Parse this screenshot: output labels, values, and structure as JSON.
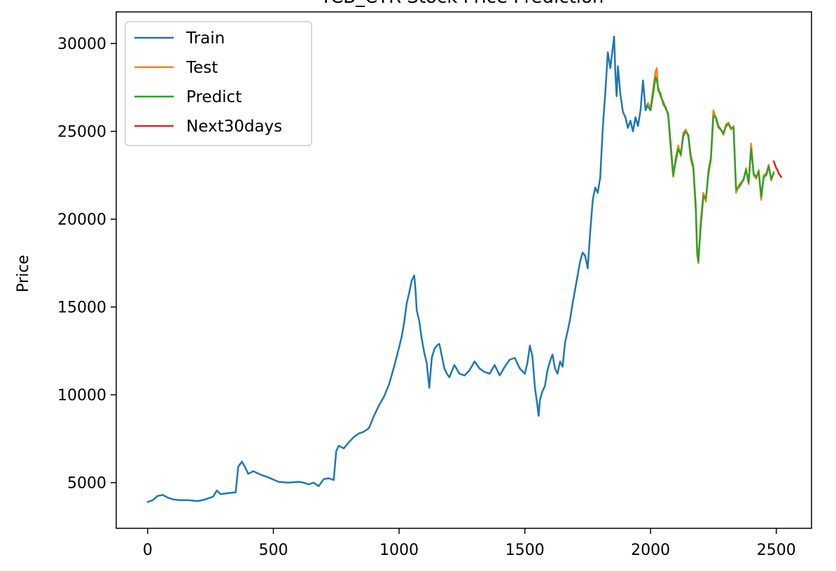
{
  "chart_data": {
    "type": "line",
    "title": "TCB_CTR Stock Price Prediction",
    "xlabel": "",
    "ylabel": "Price",
    "xlim": [
      -125,
      2640
    ],
    "ylim": [
      2400,
      31800
    ],
    "x_ticks": [
      0,
      500,
      1000,
      1500,
      2000,
      2500
    ],
    "y_ticks": [
      5000,
      10000,
      15000,
      20000,
      25000,
      30000
    ],
    "x_tick_labels": [
      "0",
      "500",
      "1000",
      "1500",
      "2000",
      "2500"
    ],
    "y_tick_labels": [
      "5000",
      "10000",
      "15000",
      "20000",
      "25000",
      "30000"
    ],
    "grid": false,
    "legend_position": "upper-left",
    "series": [
      {
        "name": "Train",
        "color": "#1f77b4",
        "x": [
          0,
          20,
          40,
          60,
          80,
          100,
          130,
          160,
          200,
          230,
          260,
          275,
          290,
          320,
          350,
          360,
          375,
          390,
          400,
          420,
          450,
          480,
          520,
          560,
          600,
          620,
          640,
          660,
          680,
          700,
          720,
          740,
          750,
          760,
          780,
          800,
          820,
          840,
          860,
          880,
          900,
          920,
          940,
          960,
          980,
          1000,
          1010,
          1020,
          1030,
          1040,
          1050,
          1060,
          1065,
          1070,
          1080,
          1090,
          1100,
          1110,
          1120,
          1130,
          1140,
          1150,
          1160,
          1170,
          1180,
          1190,
          1200,
          1220,
          1240,
          1260,
          1280,
          1300,
          1320,
          1340,
          1360,
          1380,
          1400,
          1420,
          1440,
          1460,
          1480,
          1500,
          1510,
          1520,
          1530,
          1540,
          1550,
          1555,
          1560,
          1570,
          1580,
          1590,
          1600,
          1610,
          1620,
          1630,
          1640,
          1650,
          1660,
          1670,
          1680,
          1690,
          1700,
          1710,
          1720,
          1730,
          1740,
          1750,
          1760,
          1770,
          1780,
          1790,
          1800,
          1810,
          1820,
          1830,
          1840,
          1850,
          1855,
          1860,
          1865,
          1870,
          1880,
          1890,
          1900,
          1910,
          1920,
          1930,
          1940,
          1950,
          1960,
          1970,
          1980,
          1990
        ],
        "y": [
          3900,
          4000,
          4250,
          4300,
          4150,
          4050,
          4000,
          4000,
          3950,
          4050,
          4200,
          4550,
          4350,
          4400,
          4450,
          5900,
          6200,
          5800,
          5500,
          5650,
          5450,
          5300,
          5050,
          5000,
          5050,
          5000,
          4900,
          5000,
          4800,
          5200,
          5250,
          5150,
          6800,
          7100,
          6950,
          7300,
          7600,
          7800,
          7900,
          8100,
          8800,
          9400,
          9900,
          10600,
          11600,
          12700,
          13300,
          14100,
          15200,
          15800,
          16500,
          16800,
          16000,
          14800,
          14200,
          13200,
          12400,
          11800,
          10400,
          12100,
          12600,
          12800,
          12900,
          12200,
          11500,
          11200,
          11000,
          11700,
          11200,
          11100,
          11400,
          11900,
          11500,
          11300,
          11200,
          11700,
          11100,
          11600,
          12000,
          12100,
          11500,
          11200,
          11800,
          12800,
          12200,
          10400,
          9400,
          8800,
          9700,
          10200,
          10500,
          11400,
          11900,
          12300,
          11500,
          11200,
          11900,
          11600,
          13000,
          13600,
          14300,
          15200,
          16000,
          16800,
          17600,
          18100,
          17900,
          17200,
          19300,
          21100,
          21800,
          21500,
          22400,
          25200,
          27200,
          29500,
          28600,
          29800,
          30400,
          28300,
          27000,
          28700,
          27100,
          26100,
          25800,
          25200,
          25600,
          25000,
          25800,
          25300,
          26200,
          27900,
          26200,
          26600
        ]
      },
      {
        "name": "Test",
        "color": "#ff7f0e",
        "x": [
          1990,
          2000,
          2010,
          2020,
          2025,
          2030,
          2040,
          2050,
          2060,
          2070,
          2080,
          2090,
          2100,
          2110,
          2120,
          2130,
          2140,
          2150,
          2160,
          2170,
          2180,
          2185,
          2190,
          2200,
          2210,
          2220,
          2230,
          2240,
          2250,
          2260,
          2270,
          2280,
          2290,
          2300,
          2310,
          2320,
          2330,
          2340,
          2350,
          2360,
          2370,
          2380,
          2390,
          2400,
          2410,
          2420,
          2430,
          2440,
          2450,
          2460,
          2470,
          2480,
          2490
        ],
        "y": [
          26600,
          26300,
          27400,
          28400,
          28600,
          27300,
          27200,
          26500,
          26400,
          25900,
          24000,
          22400,
          23500,
          24200,
          23600,
          24900,
          25100,
          24700,
          23400,
          22900,
          20400,
          18000,
          17500,
          20000,
          21500,
          21000,
          22800,
          23500,
          26200,
          25700,
          25200,
          25100,
          24800,
          25400,
          25500,
          25100,
          25300,
          21500,
          21900,
          22100,
          22200,
          22900,
          22000,
          24300,
          22500,
          22300,
          22800,
          21100,
          22500,
          22600,
          23100,
          22200,
          22700
        ]
      },
      {
        "name": "Predict",
        "color": "#2ca02c",
        "x": [
          1990,
          2000,
          2010,
          2020,
          2025,
          2030,
          2040,
          2050,
          2060,
          2070,
          2080,
          2090,
          2100,
          2110,
          2120,
          2130,
          2140,
          2150,
          2160,
          2170,
          2180,
          2185,
          2190,
          2200,
          2210,
          2220,
          2230,
          2240,
          2250,
          2260,
          2270,
          2280,
          2290,
          2300,
          2310,
          2320,
          2330,
          2340,
          2350,
          2360,
          2370,
          2380,
          2390,
          2400,
          2410,
          2420,
          2430,
          2440,
          2450,
          2460,
          2470,
          2480,
          2490
        ],
        "y": [
          26400,
          26200,
          27100,
          28100,
          27900,
          27500,
          27000,
          26700,
          26300,
          26000,
          24300,
          22500,
          23300,
          24000,
          23700,
          24700,
          25000,
          24800,
          23600,
          23000,
          20700,
          18300,
          17600,
          19700,
          21300,
          21200,
          22600,
          23400,
          25900,
          25800,
          25300,
          25100,
          24900,
          25300,
          25400,
          25200,
          25200,
          21700,
          21800,
          22000,
          22300,
          22800,
          22100,
          24000,
          22600,
          22400,
          22700,
          21300,
          22400,
          22500,
          23000,
          22300,
          22600
        ]
      },
      {
        "name": "Next30days",
        "color": "#d62728",
        "x": [
          2490,
          2495,
          2500,
          2505,
          2510,
          2515,
          2520
        ],
        "y": [
          23300,
          23100,
          22900,
          22800,
          22600,
          22500,
          22400
        ]
      }
    ]
  }
}
